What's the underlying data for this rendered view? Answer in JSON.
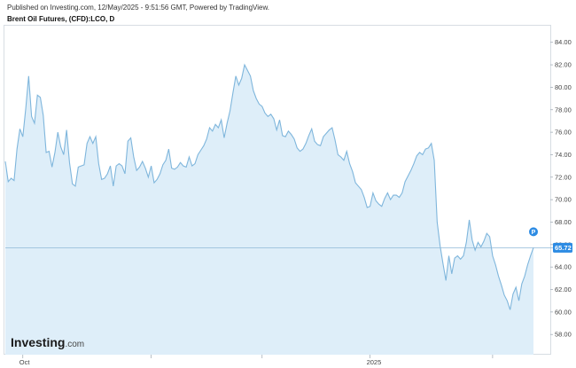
{
  "header": {
    "published": "Published on Investing.com, 12/May/2025 - 9:51:56 GMT, Powered by TradingView.",
    "instrument": "Brent Oil Futures, (CFD):LCO, D"
  },
  "watermark": {
    "brand": "Investing",
    "suffix": ".com"
  },
  "colors": {
    "line": "#7fb6dc",
    "fill": "#deeef9",
    "price_line": "#8fb8d8",
    "badge": "#2c8be3",
    "marker": "#2c8be3"
  },
  "chart_data": {
    "type": "area",
    "x_tick_labels": [
      {
        "label": "Oct",
        "index": 6
      },
      {
        "label": "2025",
        "index": 125
      }
    ],
    "x_gridline_indices": [
      6,
      50,
      88,
      125,
      167,
      202,
      241,
      288
    ],
    "y_ticks": [
      58.0,
      60.0,
      62.0,
      64.0,
      66.0,
      68.0,
      70.0,
      72.0,
      74.0,
      76.0,
      78.0,
      80.0,
      82.0,
      84.0
    ],
    "y_tick_labels": [
      "58.00",
      "60.00",
      "62.00",
      "64.00",
      "66.00",
      "68.00",
      "70.00",
      "72.00",
      "74.00",
      "76.00",
      "78.00",
      "80.00",
      "82.00",
      "84.00"
    ],
    "ylim": [
      56.2,
      85.4
    ],
    "last_price": 65.72,
    "last_price_label": "65.72",
    "marker_label": "P",
    "values": [
      73.4,
      71.6,
      71.9,
      71.7,
      74.5,
      76.3,
      75.6,
      78.1,
      81.0,
      77.4,
      76.8,
      79.3,
      79.1,
      77.5,
      74.2,
      74.3,
      72.9,
      74.2,
      76.0,
      74.7,
      74.0,
      76.2,
      73.3,
      71.4,
      71.2,
      72.9,
      73.0,
      73.1,
      75.0,
      75.6,
      75.0,
      75.6,
      73.2,
      71.8,
      71.9,
      72.3,
      73.0,
      71.2,
      73.0,
      73.2,
      73.0,
      72.3,
      75.2,
      75.5,
      73.8,
      72.6,
      72.9,
      73.4,
      72.8,
      72.0,
      73.0,
      71.5,
      71.8,
      72.3,
      73.1,
      73.5,
      74.5,
      72.8,
      72.7,
      72.9,
      73.3,
      73.0,
      72.9,
      73.8,
      73.0,
      73.2,
      74.0,
      74.4,
      74.8,
      75.4,
      76.4,
      76.1,
      76.7,
      76.4,
      77.1,
      75.5,
      76.8,
      77.9,
      79.5,
      81.0,
      80.2,
      80.8,
      82.0,
      81.5,
      81.0,
      79.7,
      79.0,
      78.5,
      78.3,
      77.7,
      77.4,
      77.6,
      77.2,
      76.2,
      77.1,
      75.7,
      75.6,
      76.1,
      75.8,
      75.4,
      74.6,
      74.3,
      74.5,
      75.0,
      75.7,
      76.3,
      75.2,
      74.9,
      74.8,
      75.6,
      75.9,
      76.2,
      76.4,
      75.3,
      74.0,
      73.8,
      73.5,
      74.3,
      73.2,
      72.5,
      71.5,
      71.2,
      70.9,
      70.2,
      69.3,
      69.4,
      70.6,
      69.9,
      69.6,
      69.4,
      70.1,
      70.6,
      70.0,
      70.4,
      70.4,
      70.2,
      70.6,
      71.6,
      72.1,
      72.6,
      73.2,
      73.9,
      74.2,
      74.0,
      74.5,
      74.6,
      75.0,
      73.5,
      68.0,
      65.9,
      64.3,
      62.8,
      65.0,
      63.4,
      64.8,
      65.0,
      64.7,
      65.0,
      66.2,
      68.2,
      66.4,
      65.5,
      66.2,
      65.8,
      66.3,
      67.0,
      66.7,
      65.0,
      64.2,
      63.2,
      62.4,
      61.5,
      61.0,
      60.2,
      61.6,
      62.2,
      61.0,
      62.5,
      63.2,
      64.2,
      65.0,
      65.72
    ]
  }
}
